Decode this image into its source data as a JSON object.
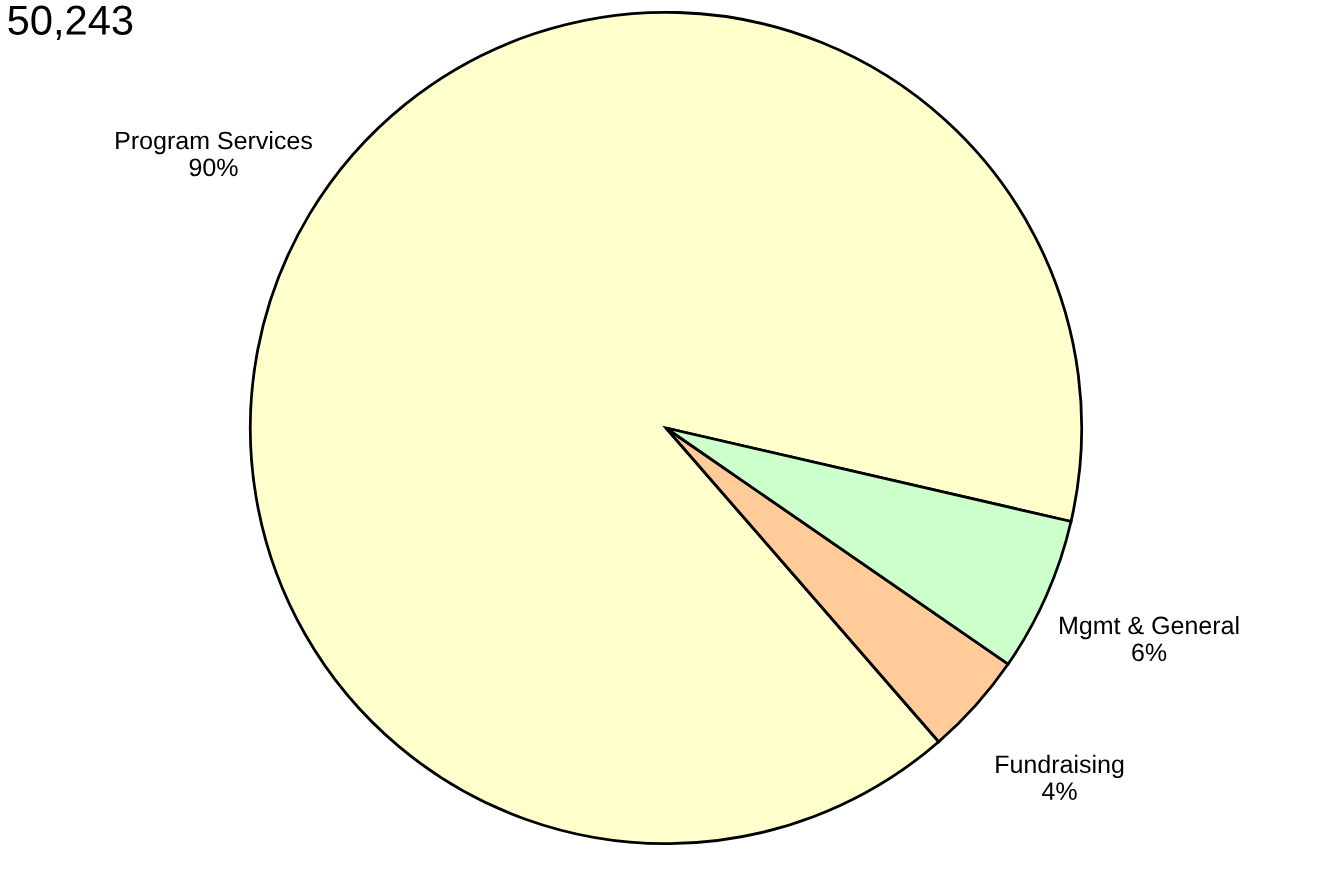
{
  "chart_data": {
    "type": "pie",
    "title": "50,243",
    "categories": [
      "Program Services",
      "Fundraising",
      "Mgmt & General"
    ],
    "values": [
      90,
      4,
      6
    ],
    "colors": [
      "#ffffcc",
      "#ffcc99",
      "#ccffcc"
    ],
    "value_labels": [
      "90%",
      "4%",
      "6%"
    ]
  }
}
